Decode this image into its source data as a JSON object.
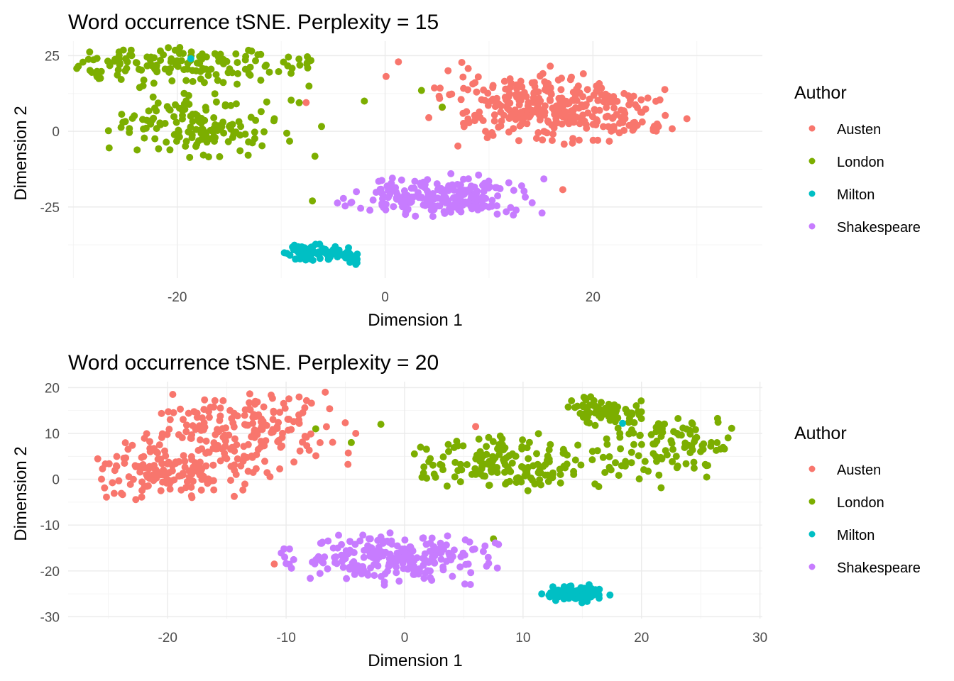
{
  "chart_data": [
    {
      "type": "scatter",
      "title": "Word occurrence tSNE. Perplexity = 15",
      "xlabel": "Dimension 1",
      "ylabel": "Dimension 2",
      "xlim": [
        -30.5,
        36.3
      ],
      "ylim": [
        -48.5,
        29.8
      ],
      "xticks": [
        -20,
        0,
        20
      ],
      "yticks": [
        -25,
        0,
        25
      ],
      "grid": true,
      "legend": {
        "title": "Author",
        "position": "right",
        "entries": [
          "Austen",
          "London",
          "Milton",
          "Shakespeare"
        ]
      },
      "colors": {
        "Austen": "#F8766D",
        "London": "#7CAE00",
        "Milton": "#00BFC4",
        "Shakespeare": "#C77CFF"
      },
      "series": [
        {
          "name": "Austen",
          "clusters": [
            {
              "n": 330,
              "cx": 16.0,
              "cy": 7.0,
              "sx": 4.0,
              "sy": 7.0,
              "xr": [
                -1.5,
                33.5
              ],
              "yr": [
                -6,
                23
              ],
              "taper": true
            }
          ],
          "points": [
            [
              -7.6,
              9.5
            ],
            [
              17.1,
              -19.3
            ]
          ]
        },
        {
          "name": "London",
          "clusters": [
            {
              "n": 150,
              "cx": -19.0,
              "cy": 22.0,
              "sx": 5.5,
              "sy": 3.0,
              "xr": [
                -30,
                -7
              ],
              "yr": [
                12,
                28
              ]
            },
            {
              "n": 150,
              "cx": -18.5,
              "cy": 2.0,
              "sx": 3.5,
              "sy": 5.5,
              "xr": [
                -27,
                -6
              ],
              "yr": [
                -9,
                16
              ]
            }
          ],
          "points": [
            [
              -2,
              10
            ],
            [
              3.5,
              13.5
            ],
            [
              5.5,
              8
            ],
            [
              -7,
              -23
            ]
          ]
        },
        {
          "name": "Milton",
          "clusters": [
            {
              "n": 85,
              "cx": -5.8,
              "cy": -40.5,
              "sx": 1.8,
              "sy": 1.4,
              "xr": [
                -10,
                -2.5
              ],
              "yr": [
                -44,
                -37
              ]
            }
          ],
          "points": [
            [
              -18.7,
              24
            ]
          ]
        },
        {
          "name": "Shakespeare",
          "clusters": [
            {
              "n": 215,
              "cx": 6.0,
              "cy": -21.5,
              "sx": 3.0,
              "sy": 3.4,
              "xr": [
                -7.5,
                15.5
              ],
              "yr": [
                -29,
                -14
              ]
            }
          ],
          "points": []
        }
      ]
    },
    {
      "type": "scatter",
      "title": "Word occurrence tSNE. Perplexity = 20",
      "xlabel": "Dimension 1",
      "ylabel": "Dimension 2",
      "xlim": [
        -28.4,
        30.2
      ],
      "ylim": [
        -30.4,
        21.3
      ],
      "xticks": [
        -20,
        -10,
        0,
        10,
        20,
        30
      ],
      "yticks": [
        -30,
        -20,
        -10,
        0,
        10,
        20
      ],
      "grid": true,
      "legend": {
        "title": "Author",
        "position": "right",
        "entries": [
          "Austen",
          "London",
          "Milton",
          "Shakespeare"
        ]
      },
      "colors": {
        "Austen": "#F8766D",
        "London": "#7CAE00",
        "Milton": "#00BFC4",
        "Shakespeare": "#C77CFF"
      },
      "series": [
        {
          "name": "Austen",
          "clusters": [
            {
              "n": 200,
              "cx": -14.0,
              "cy": 10.0,
              "sx": 3.0,
              "sy": 4.5,
              "xr": [
                -22,
                -4
              ],
              "yr": [
                -2,
                19.5
              ]
            },
            {
              "n": 130,
              "cx": -20.5,
              "cy": 1.5,
              "sx": 2.8,
              "sy": 3.0,
              "xr": [
                -26,
                -13
              ],
              "yr": [
                -6,
                10
              ]
            }
          ],
          "points": [
            [
              -11,
              -18.5
            ],
            [
              6,
              11.5
            ]
          ]
        },
        {
          "name": "London",
          "clusters": [
            {
              "n": 165,
              "cx": 8.5,
              "cy": 3.0,
              "sx": 4.0,
              "sy": 2.8,
              "xr": [
                0.5,
                19
              ],
              "yr": [
                -2.5,
                10
              ]
            },
            {
              "n": 70,
              "cx": 17.0,
              "cy": 15.0,
              "sx": 1.6,
              "sy": 1.6,
              "xr": [
                13.5,
                20.5
              ],
              "yr": [
                11,
                19
              ]
            },
            {
              "n": 100,
              "cx": 21.5,
              "cy": 8.0,
              "sx": 2.8,
              "sy": 3.5,
              "xr": [
                17,
                28
              ],
              "yr": [
                -2,
                15
              ]
            }
          ],
          "points": [
            [
              -7.5,
              11
            ],
            [
              -4.5,
              8
            ],
            [
              -2,
              12
            ],
            [
              7.5,
              -13
            ]
          ]
        },
        {
          "name": "Milton",
          "clusters": [
            {
              "n": 85,
              "cx": 14.5,
              "cy": -25.0,
              "sx": 1.1,
              "sy": 1.0,
              "xr": [
                11.5,
                17.5
              ],
              "yr": [
                -27.5,
                -22
              ]
            }
          ],
          "points": [
            [
              18.4,
              12.2
            ]
          ]
        },
        {
          "name": "Shakespeare",
          "clusters": [
            {
              "n": 225,
              "cx": -1.0,
              "cy": -17.0,
              "sx": 3.6,
              "sy": 2.4,
              "xr": [
                -10.5,
                8.5
              ],
              "yr": [
                -24,
                -11.5
              ]
            }
          ],
          "points": []
        }
      ]
    }
  ]
}
